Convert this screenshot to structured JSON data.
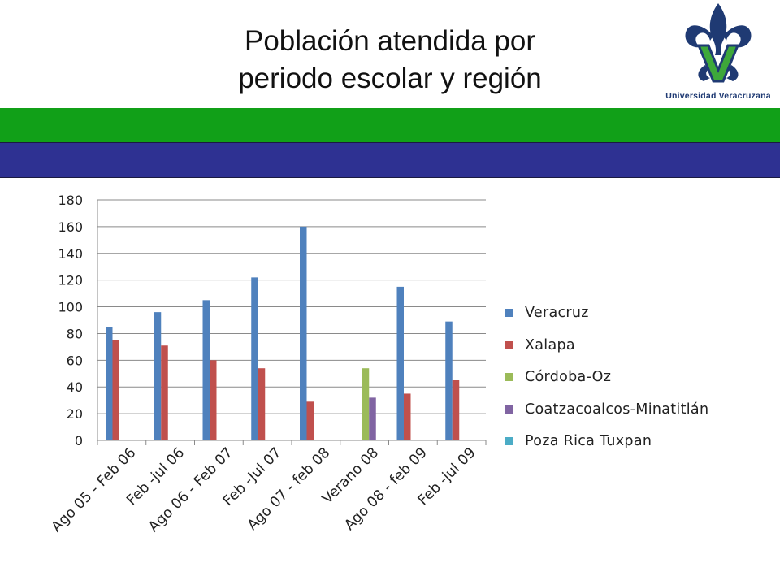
{
  "slide": {
    "title_line1": "Población atendida por",
    "title_line2": "periodo escolar y región",
    "logo_text": "Universidad Veracruzana"
  },
  "colors": {
    "band_green": "#11a018",
    "band_blue": "#2e3192",
    "logo_blue": "#1f3a73",
    "logo_green": "#3ea83a"
  },
  "chart_data": {
    "type": "bar",
    "title": "",
    "xlabel": "",
    "ylabel": "",
    "ylim": [
      0,
      180
    ],
    "yticks": [
      0,
      20,
      40,
      60,
      80,
      100,
      120,
      140,
      160,
      180
    ],
    "grid": true,
    "legend_position": "right",
    "categories": [
      "Ago 05 - Feb 06",
      "Feb -jul 06",
      "Ago 06 - Feb 07",
      "Feb -Jul 07",
      "Ago 07 - feb 08",
      "Verano 08",
      "Ago 08 - feb 09",
      "Feb -jul 09"
    ],
    "series": [
      {
        "name": "Veracruz",
        "color": "#4f81bd",
        "values": [
          85,
          96,
          105,
          122,
          160,
          0,
          115,
          89
        ]
      },
      {
        "name": "Xalapa",
        "color": "#c0504d",
        "values": [
          75,
          71,
          60,
          54,
          29,
          0,
          35,
          45
        ]
      },
      {
        "name": "Córdoba-Oz",
        "color": "#9bbb59",
        "values": [
          0,
          0,
          0,
          0,
          0,
          54,
          0,
          0
        ]
      },
      {
        "name": "Coatzacoalcos-Minatitlán",
        "color": "#8064a2",
        "values": [
          0,
          0,
          0,
          0,
          0,
          32,
          0,
          0
        ]
      },
      {
        "name": "Poza Rica Tuxpan",
        "color": "#4bacc6",
        "values": [
          0,
          0,
          0,
          0,
          0,
          0,
          0,
          0
        ]
      }
    ]
  }
}
